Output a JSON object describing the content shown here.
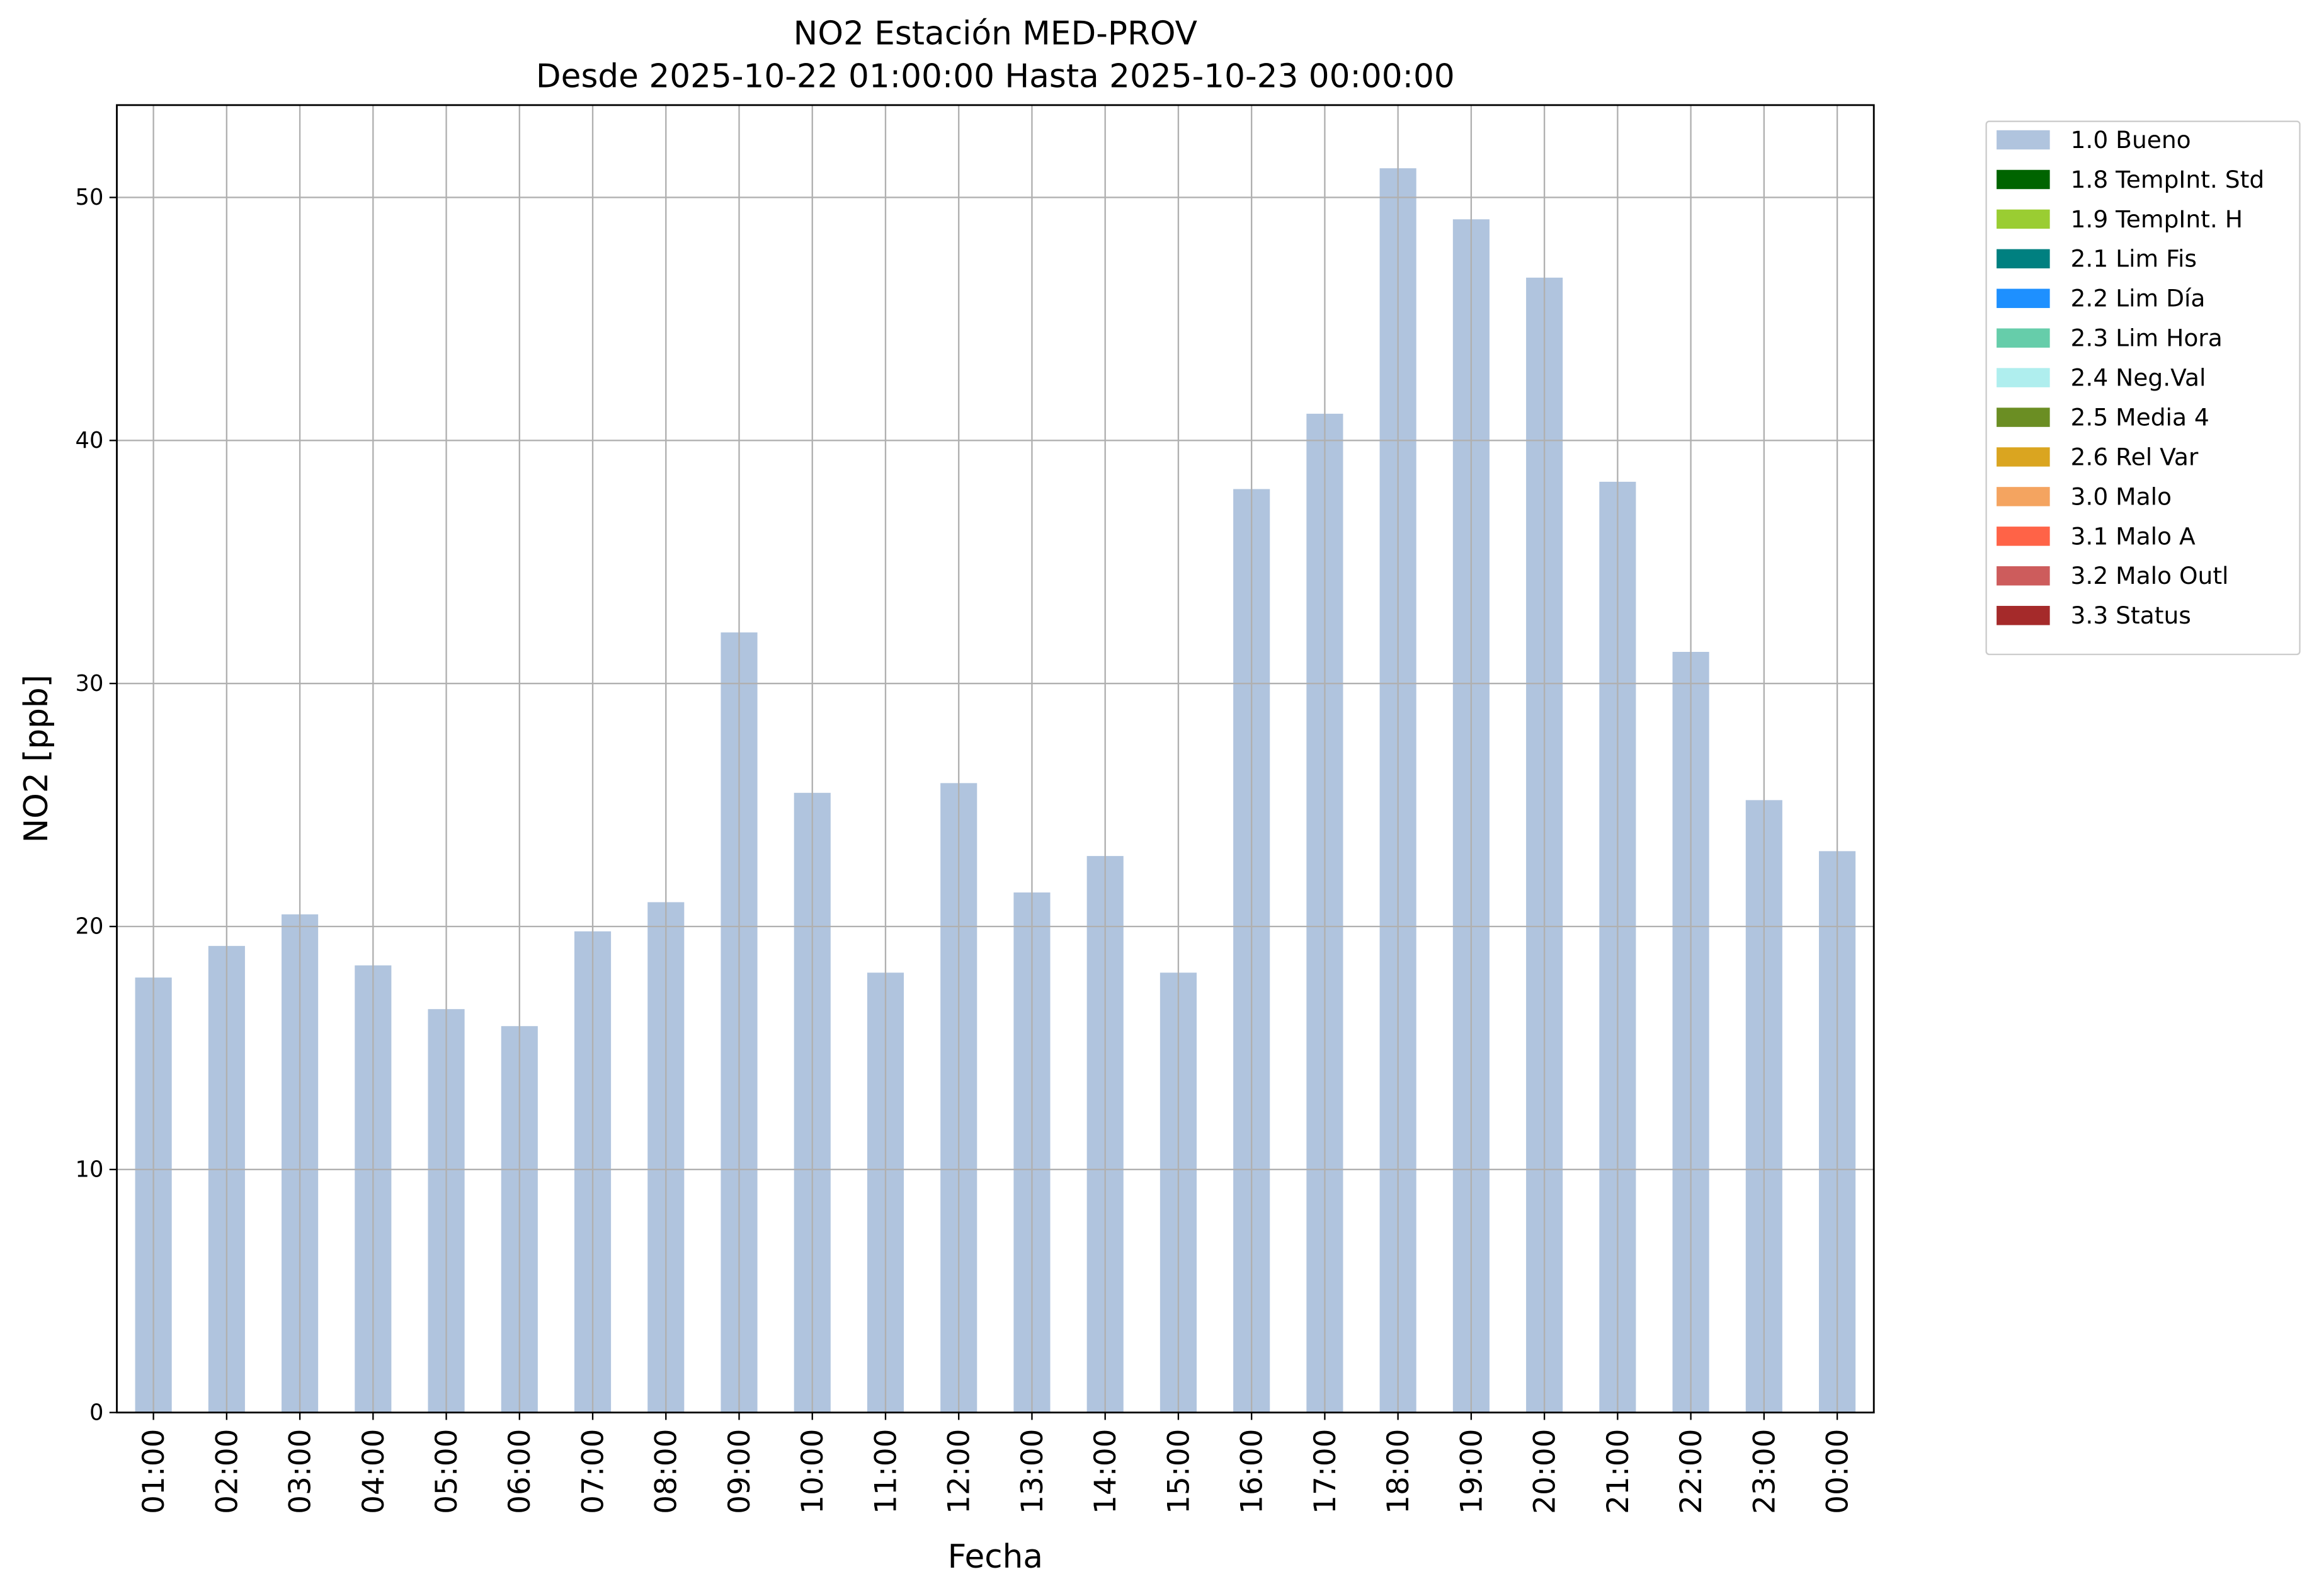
{
  "chart_data": {
    "type": "bar",
    "title": "NO2 Estación MED-PROV",
    "subtitle": "Desde 2025-10-22 01:00:00 Hasta 2025-10-23 00:00:00",
    "x_label": "Fecha",
    "y_label": "NO2 [ppb]",
    "categories": [
      "01:00",
      "02:00",
      "03:00",
      "04:00",
      "05:00",
      "06:00",
      "07:00",
      "08:00",
      "09:00",
      "10:00",
      "11:00",
      "12:00",
      "13:00",
      "14:00",
      "15:00",
      "16:00",
      "17:00",
      "18:00",
      "19:00",
      "20:00",
      "21:00",
      "22:00",
      "23:00",
      "00:00"
    ],
    "series": [
      {
        "name": "1.0 Bueno",
        "color": "#b0c4de",
        "values": [
          17.9,
          19.2,
          20.5,
          18.4,
          16.6,
          15.9,
          19.8,
          21.0,
          32.1,
          25.5,
          18.1,
          25.9,
          21.4,
          22.9,
          18.1,
          38.0,
          41.1,
          51.2,
          49.1,
          46.7,
          38.3,
          31.3,
          25.2,
          23.1
        ]
      },
      {
        "name": "1.8 TempInt. Std",
        "color": "#006400"
      },
      {
        "name": "1.9 TempInt. H",
        "color": "#9acd32"
      },
      {
        "name": "2.1 Lim Fis",
        "color": "#008080"
      },
      {
        "name": "2.2 Lim Día",
        "color": "#1e90ff"
      },
      {
        "name": "2.3 Lim Hora",
        "color": "#66cdaa"
      },
      {
        "name": "2.4 Neg.Val",
        "color": "#afeeee"
      },
      {
        "name": "2.5 Media 4",
        "color": "#6b8e23"
      },
      {
        "name": "2.6 Rel Var",
        "color": "#daa520"
      },
      {
        "name": "3.0 Malo",
        "color": "#f4a460"
      },
      {
        "name": "3.1 Malo A",
        "color": "#ff6347"
      },
      {
        "name": "3.2 Malo Outl",
        "color": "#cd5c5c"
      },
      {
        "name": "3.3 Status",
        "color": "#a52a2a"
      }
    ],
    "ylim": [
      0,
      53.8
    ],
    "yticks": [
      0,
      10,
      20,
      30,
      40,
      50
    ],
    "grid": true,
    "stacked": true,
    "legend": "outside-upper-right"
  }
}
